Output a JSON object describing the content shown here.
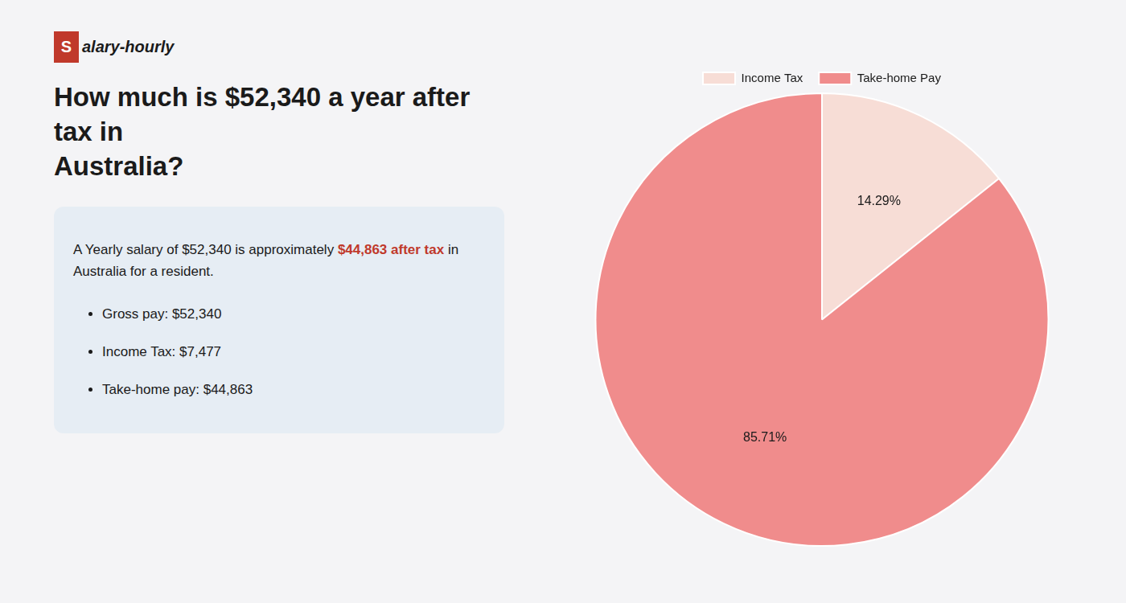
{
  "chart_data": {
    "type": "pie",
    "title": "How much is $52,340 a year after tax in\nAustralia?",
    "categories": [
      "Income Tax",
      "Take-home Pay"
    ],
    "values": [
      14.29,
      85.71
    ],
    "value_labels": [
      "14.29%",
      "85.71%"
    ],
    "data_labels": true,
    "colors": [
      "#f7ddd6",
      "#f08c8c"
    ],
    "legend": "top",
    "annotations": [
      "Salary-hourly",
      [
        {
          "text": "A Yearly salary of $52,340 is approximately ",
          "color": "#1a1a1a"
        },
        {
          "text": "$44,863 after tax",
          "color": "#c0392b"
        },
        {
          "text": " in",
          "color": "#1a1a1a"
        }
      ],
      "Australia for a resident.",
      "Gross pay: $52,340",
      "Income Tax: $7,477",
      "Take-home pay: $44,863"
    ]
  }
}
